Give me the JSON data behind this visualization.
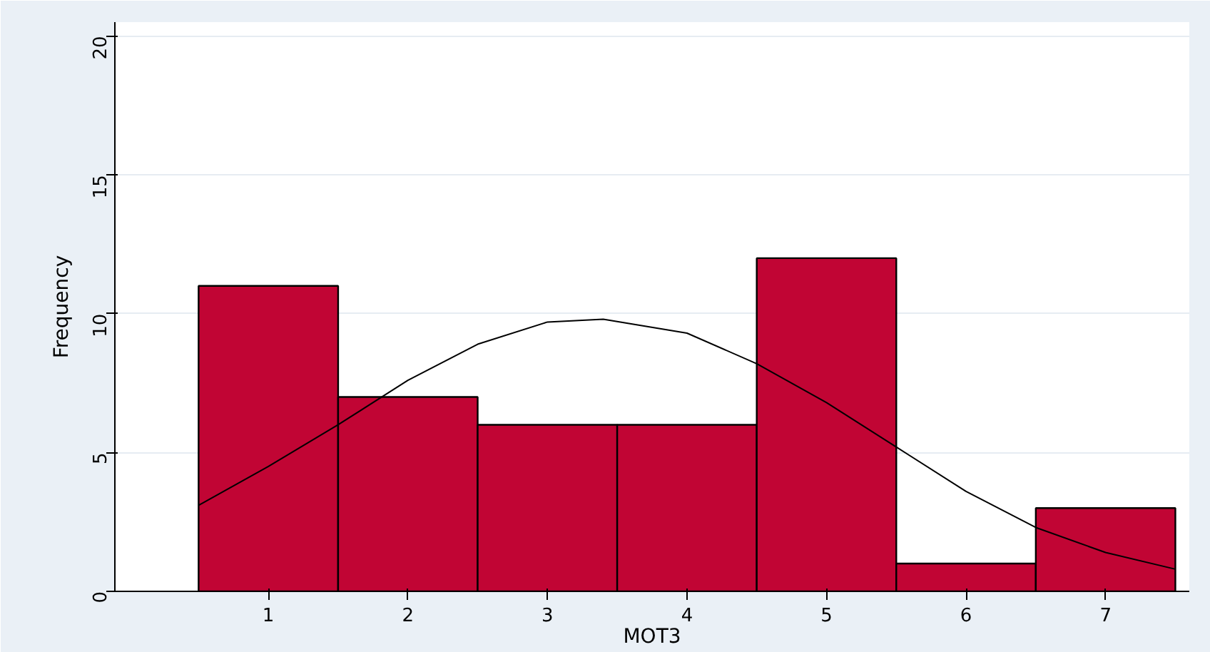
{
  "chart_data": {
    "type": "histogram",
    "xlabel": "MOT3",
    "ylabel": "Frequency",
    "bins": [
      0.5,
      1.5,
      2.5,
      3.5,
      4.5,
      5.5,
      6.5,
      7.5
    ],
    "values": [
      11,
      7,
      6,
      6,
      12,
      1,
      3
    ],
    "color": "#c10534",
    "series": [
      {
        "type": "line",
        "color": "#000000",
        "x": [
          0.5,
          1,
          1.5,
          2,
          2.5,
          3,
          3.4,
          4,
          4.5,
          5,
          5.5,
          6,
          6.5,
          7,
          7.5
        ],
        "values": [
          3.1,
          4.5,
          6.0,
          7.6,
          8.9,
          9.7,
          9.8,
          9.3,
          8.2,
          6.8,
          5.2,
          3.6,
          2.3,
          1.4,
          0.8
        ]
      }
    ],
    "xlim": [
      -0.1,
      7.6
    ],
    "xticks": [
      1,
      2,
      3,
      4,
      5,
      6,
      7
    ],
    "ylim": [
      0,
      20.5
    ],
    "yticks": [
      0,
      5,
      10,
      15,
      20
    ],
    "grid": "y",
    "marker": "none",
    "line_style": "solid"
  }
}
